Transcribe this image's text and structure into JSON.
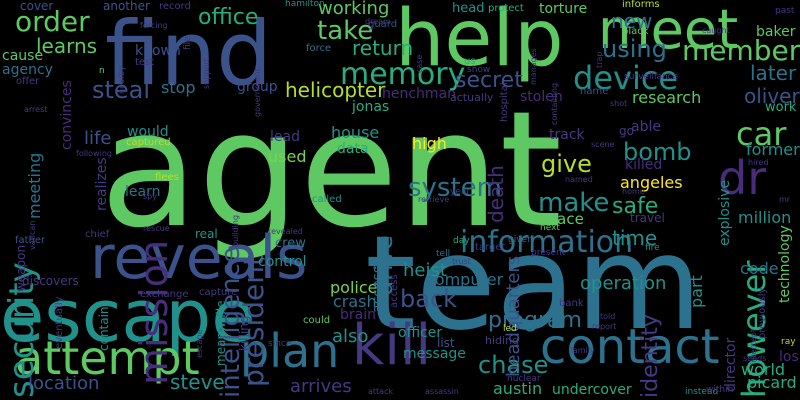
{
  "colors": {
    "background": "#000000",
    "green": "#5ec962",
    "lime": "#7ad151",
    "teal": "#21918c",
    "tealLight": "#27ad81",
    "blue": "#3b528b",
    "steel": "#2c728e",
    "purple": "#472d7b",
    "indigo": "#443983",
    "yellow": "#fde725",
    "yellowGreen": "#b5de2b"
  },
  "words": [
    "agent",
    "team",
    "help",
    "find",
    "escape",
    "meet",
    "reveals",
    "kill",
    "contact",
    "plan",
    "attempt",
    "mission",
    "dr",
    "memory",
    "security",
    "however",
    "car",
    "device",
    "information",
    "steal",
    "member",
    "office",
    "order",
    "learns",
    "take",
    "using",
    "new",
    "return",
    "secret",
    "later",
    "working",
    "president",
    "system",
    "make",
    "give",
    "bomb",
    "drive",
    "chase",
    "steve",
    "location",
    "back",
    "helicopter",
    "oliver",
    "police",
    "crash",
    "also",
    "program",
    "operation",
    "heist",
    "time",
    "safe",
    "code",
    "identity",
    "death",
    "headquarters",
    "intelligence",
    "angeles",
    "research",
    "high",
    "used",
    "data",
    "lead",
    "house",
    "computer",
    "officer",
    "message",
    "arrives",
    "austin",
    "undercover",
    "picard",
    "world",
    "los",
    "director",
    "part",
    "million",
    "explosive",
    "technology",
    "former",
    "known",
    "stop",
    "group",
    "jonas",
    "henchman",
    "stolen",
    "track",
    "able",
    "killed",
    "learn",
    "life",
    "would",
    "meeting",
    "realizes",
    "convinces",
    "agency",
    "cause",
    "cover",
    "another",
    "record",
    "hamilton",
    "informs",
    "past",
    "baker",
    "head",
    "protect",
    "torture",
    "guard",
    "force",
    "file",
    "test",
    "weapon",
    "father",
    "chief",
    "crew",
    "control",
    "real",
    "revealed",
    "discovers",
    "eventually",
    "contains",
    "exchange",
    "capture",
    "meanwhile",
    "killing",
    "since",
    "could",
    "brain",
    "list",
    "hiding",
    "attack",
    "assassin",
    "nuclear",
    "family",
    "instead",
    "within",
    "sends",
    "ray",
    "told",
    "report",
    "led",
    "bank",
    "present",
    "next",
    "fire",
    "trust",
    "tell",
    "day",
    "given",
    "race",
    "travel",
    "target",
    "spy",
    "flees",
    "rescue",
    "called",
    "retrieve",
    "year",
    "named",
    "home",
    "shot",
    "hired",
    "work",
    "name",
    "actually",
    "show",
    "us",
    "surveillance",
    "caught",
    "black",
    "forcing",
    "government",
    "dream",
    "n",
    "captured",
    "following",
    "arrest",
    "building",
    "previously",
    "intercept",
    "case",
    "nearby",
    "support",
    "access",
    "access",
    "scene",
    "containing",
    "manages",
    "hospital",
    "go",
    "escape",
    "trap",
    "vatican",
    "offer",
    "mr"
  ]
}
